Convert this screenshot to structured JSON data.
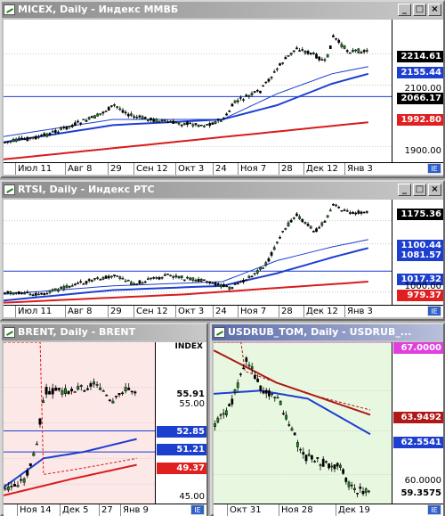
{
  "windows": [
    {
      "id": "micex",
      "title": "MICEX, Daily - Индекс ММВБ",
      "x_ticks": [
        "Июл 11",
        "Авг 8",
        "29",
        "Сен 12",
        "Окт 3",
        "24",
        "Ноя 7",
        "28",
        "Дек 12",
        "Янв 3"
      ],
      "y_labels": [
        "2100.00",
        "1900.00"
      ],
      "tags": [
        {
          "value": "2214.61",
          "bg": "#000000",
          "fg": "#ffffff"
        },
        {
          "value": "2155.44",
          "bg": "#1d3fd0",
          "fg": "#ffffff"
        },
        {
          "value": "2066.17",
          "bg": "#000000",
          "fg": "#ffffff"
        },
        {
          "value": "1992.80",
          "bg": "#e02020",
          "fg": "#ffffff"
        }
      ]
    },
    {
      "id": "rtsi",
      "title": "RTSI, Daily - Индекс РТС",
      "x_ticks": [
        "Июл 11",
        "Авг 8",
        "29",
        "Сен 12",
        "Окт 3",
        "24",
        "Ноя 7",
        "28",
        "Дек 12",
        "Янв 3"
      ],
      "y_labels": [
        "1000.00"
      ],
      "tags": [
        {
          "value": "1175.36",
          "bg": "#000000",
          "fg": "#ffffff"
        },
        {
          "value": "1100.44",
          "bg": "#1d3fd0",
          "fg": "#ffffff"
        },
        {
          "value": "1081.57",
          "bg": "#1d3fd0",
          "fg": "#ffffff"
        },
        {
          "value": "1017.32",
          "bg": "#1d3fd0",
          "fg": "#ffffff"
        },
        {
          "value": "979.37",
          "bg": "#e02020",
          "fg": "#ffffff"
        }
      ]
    },
    {
      "id": "brent",
      "title": "BRENT, Daily - BRENT",
      "index_label": "INDEX",
      "x_ticks": [
        "Ноя 14",
        "Дек 5",
        "27",
        "Янв 9"
      ],
      "y_labels": [
        "55.00",
        "45.00"
      ],
      "tags": [
        {
          "value": "55.91",
          "bg": "#ffffff",
          "fg": "#000000"
        },
        {
          "value": "52.85",
          "bg": "#1d3fd0",
          "fg": "#ffffff"
        },
        {
          "value": "51.21",
          "bg": "#1d3fd0",
          "fg": "#ffffff"
        },
        {
          "value": "49.37",
          "bg": "#e02020",
          "fg": "#ffffff"
        }
      ]
    },
    {
      "id": "usdrub",
      "title": "USDRUB_TOM, Daily - USDRUB_...",
      "x_ticks": [
        "Окт 31",
        "Ноя 28",
        "Дек 19"
      ],
      "y_labels": [
        "60.0000"
      ],
      "tags": [
        {
          "value": "67.0000",
          "bg": "#e040e0",
          "fg": "#ffffff"
        },
        {
          "value": "63.9492",
          "bg": "#b01818",
          "fg": "#ffffff"
        },
        {
          "value": "62.5541",
          "bg": "#1d3fd0",
          "fg": "#ffffff"
        },
        {
          "value": "59.3575",
          "bg": "#ffffff",
          "fg": "#000000"
        }
      ]
    }
  ],
  "icons": {
    "minimize": "minimize-icon",
    "restore": "restore-icon",
    "close": "close-icon",
    "chart": "chart-icon"
  },
  "buttons": {
    "min": "_",
    "max": "□",
    "close": "×",
    "corner": "IE"
  },
  "colors": {
    "candle_up": "#1a8a1a",
    "ma_blue": "#1d3fd0",
    "ma_red": "#d81c1c",
    "brent_bg": "#fde8e8",
    "usdrub_bg": "#e8f8e0"
  }
}
